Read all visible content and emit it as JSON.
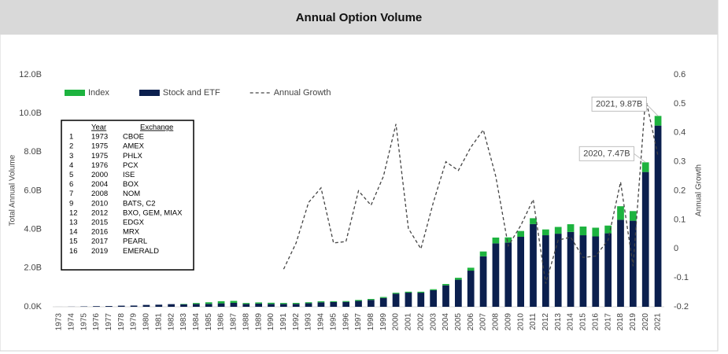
{
  "chart_data": {
    "type": "bar",
    "stacked": true,
    "title": "Annual Option Volume",
    "y_label": "Total Annual Volume",
    "y2_label": "Annual Growth",
    "legend": "top-left",
    "grid": false,
    "categories": [
      "1973",
      "1974",
      "1975",
      "1976",
      "1977",
      "1978",
      "1979",
      "1980",
      "1981",
      "1982",
      "1983",
      "1984",
      "1985",
      "1986",
      "1987",
      "1988",
      "1989",
      "1990",
      "1991",
      "1992",
      "1993",
      "1994",
      "1995",
      "1996",
      "1997",
      "1998",
      "1999",
      "2000",
      "2001",
      "2002",
      "2003",
      "2004",
      "2005",
      "2006",
      "2007",
      "2008",
      "2009",
      "2010",
      "2011",
      "2012",
      "2013",
      "2014",
      "2015",
      "2016",
      "2017",
      "2018",
      "2019",
      "2020",
      "2021"
    ],
    "series": [
      {
        "name": "Index",
        "color": "#1db33f",
        "values": [
          0,
          0,
          0,
          0,
          0,
          0,
          0,
          0,
          0,
          0,
          0.02,
          0.05,
          0.08,
          0.11,
          0.1,
          0.05,
          0.06,
          0.06,
          0.05,
          0.05,
          0.05,
          0.05,
          0.04,
          0.04,
          0.05,
          0.05,
          0.05,
          0.05,
          0.05,
          0.05,
          0.05,
          0.07,
          0.1,
          0.15,
          0.25,
          0.3,
          0.27,
          0.3,
          0.3,
          0.3,
          0.35,
          0.4,
          0.45,
          0.45,
          0.4,
          0.7,
          0.5,
          0.5,
          0.5
        ]
      },
      {
        "name": "Stock and ETF",
        "color": "#0b1f4e",
        "values": [
          0.001,
          0.006,
          0.018,
          0.032,
          0.039,
          0.058,
          0.064,
          0.097,
          0.109,
          0.137,
          0.129,
          0.146,
          0.153,
          0.179,
          0.205,
          0.146,
          0.167,
          0.15,
          0.148,
          0.152,
          0.185,
          0.233,
          0.249,
          0.256,
          0.304,
          0.356,
          0.457,
          0.677,
          0.731,
          0.73,
          0.858,
          1.11,
          1.4,
          1.87,
          2.61,
          3.28,
          3.32,
          3.62,
          4.28,
          3.7,
          3.78,
          3.87,
          3.7,
          3.64,
          3.8,
          4.5,
          4.45,
          6.97,
          9.37
        ]
      },
      {
        "name": "Annual Growth",
        "type": "line",
        "style": "dashed",
        "axis": "y2",
        "color": "#444444",
        "values": [
          null,
          null,
          null,
          null,
          null,
          null,
          null,
          null,
          null,
          null,
          null,
          null,
          null,
          null,
          null,
          null,
          null,
          null,
          -0.07,
          0.02,
          0.16,
          0.21,
          0.02,
          0.025,
          0.2,
          0.15,
          0.25,
          0.43,
          0.07,
          0.0,
          0.16,
          0.3,
          0.27,
          0.35,
          0.41,
          0.25,
          0.01,
          0.08,
          0.17,
          -0.12,
          0.03,
          0.04,
          -0.03,
          -0.025,
          0.03,
          0.23,
          -0.06,
          0.52,
          0.32
        ]
      }
    ],
    "ylim": [
      0,
      12
    ],
    "yticks": [
      {
        "value": 0,
        "label": "0.0K"
      },
      {
        "value": 2,
        "label": "2.0B"
      },
      {
        "value": 4,
        "label": "4.0B"
      },
      {
        "value": 6,
        "label": "6.0B"
      },
      {
        "value": 8,
        "label": "8.0B"
      },
      {
        "value": 10,
        "label": "10.0B"
      },
      {
        "value": 12,
        "label": "12.0B"
      }
    ],
    "y2lim": [
      -0.2,
      0.6
    ],
    "y2ticks": [
      -0.2,
      -0.1,
      0,
      0.1,
      0.2,
      0.3,
      0.4,
      0.5,
      0.6
    ],
    "annotations": [
      {
        "text": "2021, 9.87B",
        "x": "2021",
        "y": 9.87
      },
      {
        "text": "2020, 7.47B",
        "x": "2020",
        "y": 7.47
      }
    ],
    "table": {
      "columns": [
        "Year",
        "Exchange"
      ],
      "rows": [
        [
          "1",
          "1973",
          "CBOE"
        ],
        [
          "2",
          "1975",
          "AMEX"
        ],
        [
          "3",
          "1975",
          "PHLX"
        ],
        [
          "4",
          "1976",
          "PCX"
        ],
        [
          "5",
          "2000",
          "ISE"
        ],
        [
          "6",
          "2004",
          "BOX"
        ],
        [
          "7",
          "2008",
          "NOM"
        ],
        [
          "9",
          "2010",
          "BATS, C2"
        ],
        [
          "12",
          "2012",
          "BXO, GEM, MIAX"
        ],
        [
          "13",
          "2015",
          "EDGX"
        ],
        [
          "14",
          "2016",
          "MRX"
        ],
        [
          "15",
          "2017",
          "PEARL"
        ],
        [
          "16",
          "2019",
          "EMERALD"
        ]
      ]
    }
  }
}
